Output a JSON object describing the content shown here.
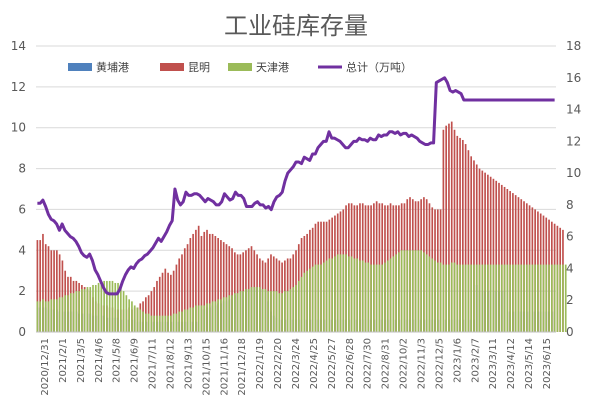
{
  "chart_data": {
    "type": "bar",
    "title": "工业硅库存量",
    "xlabel": "",
    "ylabel": "",
    "ylim_left": [
      0,
      14
    ],
    "ylim_right": [
      0,
      18
    ],
    "left_ticks": [
      "0",
      "2",
      "4",
      "6",
      "8",
      "10",
      "12",
      "14"
    ],
    "right_ticks": [
      "0",
      "2",
      "4",
      "6",
      "8",
      "10",
      "12",
      "14",
      "16",
      "18"
    ],
    "x_tick_labels": [
      "2020/12/31",
      "2021/2/1",
      "2021/3/5",
      "2021/4/6",
      "2021/5/8",
      "2021/6/9",
      "2021/7/11",
      "2021/8/12",
      "2021/9/13",
      "2021/10/15",
      "2021/11/16",
      "2021/12/18",
      "2022/1/19",
      "2022/2/20",
      "2022/3/24",
      "2022/4/25",
      "2022/5/27",
      "2022/6/28",
      "2022/7/30",
      "2022/8/31",
      "2022/10/2",
      "2022/11/3",
      "2022/12/5",
      "2023/1/6",
      "2023/2/7",
      "2023/3/11",
      "2023/4/12",
      "2023/5/14",
      "2023/6/15"
    ],
    "legend_position": "top",
    "series": [
      {
        "name": "黄埔港",
        "axis": "left",
        "type": "bar",
        "color": "#4f81bd",
        "values": [
          1.2,
          1.2,
          1.2,
          1.2,
          1.1,
          1.1,
          1.1,
          1.1,
          1.0,
          1.0,
          1.0,
          1.0,
          1.0,
          1.0,
          1.0,
          0.9,
          0.9,
          0.9,
          0.9,
          0.9,
          0.8,
          0.8,
          0.8,
          0.8,
          0.8,
          0.7,
          0.7,
          0.7,
          0.7,
          0.7,
          0.6,
          0.6,
          0.6,
          0.6,
          0.6,
          0.6,
          0.5,
          0.5,
          0.5,
          0.5,
          0.5,
          0.5,
          0.5,
          0.5,
          0.5,
          0.5,
          0.5,
          0.5,
          0.5,
          0.5,
          0.5,
          0.5,
          0.5,
          0.5,
          0.5,
          0.5,
          0.5,
          0.5,
          0.5,
          1.1,
          1.1,
          1.2,
          1.2,
          1.3,
          1.3,
          1.4,
          1.4,
          1.5,
          1.5,
          1.6,
          1.8,
          1.8,
          1.9,
          2.0,
          2.0,
          2.1,
          2.1,
          2.2,
          2.2,
          2.2,
          2.2,
          2.1,
          2.0,
          1.5,
          1.0,
          0.8,
          0.7,
          0.6,
          0.6,
          0.6,
          0.6,
          0.6,
          0.6,
          0.6,
          0.6,
          0.6,
          0.6,
          0.6,
          0.6,
          0.6,
          0.6,
          0.6,
          0.6,
          0.6,
          0.6,
          0.6,
          0.6,
          0.6,
          0.6,
          0.6,
          0.6,
          0.6,
          0.6,
          0.6,
          0.6,
          0.6,
          0.6,
          0.6,
          0.6,
          0.6,
          0.6,
          0.6,
          0.6,
          0.6,
          0.6,
          0.6,
          0.6,
          0.6,
          0.6,
          0.6,
          0.6,
          0.6,
          0.6,
          0.6,
          0.6,
          0.6,
          0.6,
          0.6,
          0.6,
          0.6,
          0.6,
          0.6,
          0.6,
          0.6,
          0.6,
          0.6,
          0.6,
          0.6,
          0.6,
          0.6,
          0.6,
          0.6,
          0.6,
          0.6,
          0.6,
          0.6,
          0.6,
          0.6,
          2.3,
          2.0,
          2.0,
          2.0,
          2.0,
          2.0,
          2.0,
          2.0,
          2.0,
          2.0,
          2.0,
          1.0,
          1.0,
          1.0,
          1.0,
          1.0,
          1.0,
          1.0,
          1.0,
          1.0,
          1.0,
          1.0,
          1.0,
          1.0,
          1.0,
          1.0,
          1.0,
          1.0,
          1.0
        ]
      },
      {
        "name": "昆明",
        "axis": "left",
        "type": "bar",
        "color": "#c0504d",
        "values": [
          4.5,
          4.5,
          4.8,
          4.3,
          4.2,
          4.0,
          4.0,
          4.0,
          3.8,
          3.5,
          3.0,
          2.7,
          2.7,
          2.5,
          2.5,
          2.4,
          2.3,
          2.2,
          2.1,
          2.0,
          1.7,
          1.5,
          1.4,
          1.3,
          1.3,
          1.3,
          1.2,
          1.2,
          1.1,
          1.1,
          1.1,
          1.1,
          1.1,
          1.2,
          1.1,
          1.2,
          1.2,
          1.4,
          1.5,
          1.7,
          1.8,
          2.0,
          2.2,
          2.5,
          2.7,
          2.9,
          3.1,
          2.9,
          2.8,
          3.0,
          3.3,
          3.6,
          3.8,
          4.1,
          4.3,
          4.6,
          4.8,
          5.0,
          5.2,
          4.7,
          4.9,
          5.0,
          4.8,
          4.8,
          4.7,
          4.6,
          4.5,
          4.4,
          4.3,
          4.2,
          4.1,
          3.9,
          3.8,
          3.8,
          3.9,
          4.0,
          4.1,
          4.2,
          4.0,
          3.8,
          3.6,
          3.5,
          3.4,
          3.6,
          3.8,
          3.7,
          3.6,
          3.5,
          3.4,
          3.5,
          3.6,
          3.6,
          3.8,
          4.0,
          4.3,
          4.6,
          4.7,
          4.8,
          5.0,
          5.1,
          5.3,
          5.4,
          5.4,
          5.4,
          5.4,
          5.5,
          5.6,
          5.7,
          5.8,
          5.9,
          6.0,
          6.2,
          6.3,
          6.3,
          6.2,
          6.2,
          6.3,
          6.3,
          6.2,
          6.2,
          6.2,
          6.3,
          6.4,
          6.3,
          6.3,
          6.2,
          6.2,
          6.3,
          6.2,
          6.2,
          6.2,
          6.3,
          6.3,
          6.5,
          6.6,
          6.5,
          6.4,
          6.4,
          6.5,
          6.6,
          6.5,
          6.3,
          6.1,
          6.0,
          6.0,
          6.0,
          9.9,
          10.1,
          10.2,
          10.3,
          9.9,
          9.6,
          9.5,
          9.4,
          9.2,
          8.9,
          8.6,
          8.4,
          8.2,
          8.0,
          7.9,
          7.8,
          7.7,
          7.6,
          7.5,
          7.4,
          7.3,
          7.2,
          7.1,
          7.0,
          6.9,
          6.8,
          6.7,
          6.6,
          6.5,
          6.4,
          6.3,
          6.2,
          6.1,
          6.0,
          5.9,
          5.8,
          5.7,
          5.6,
          5.5,
          5.4,
          5.3,
          5.2,
          5.1,
          5.0
        ]
      },
      {
        "name": "天津港",
        "axis": "left",
        "type": "bar",
        "color": "#9bbb59",
        "values": [
          1.5,
          1.5,
          1.6,
          1.5,
          1.5,
          1.6,
          1.6,
          1.6,
          1.7,
          1.7,
          1.8,
          1.8,
          1.9,
          1.9,
          2.0,
          2.0,
          2.1,
          2.1,
          2.2,
          2.2,
          2.3,
          2.3,
          2.4,
          2.4,
          2.5,
          2.5,
          2.5,
          2.5,
          2.4,
          2.4,
          2.2,
          2.0,
          1.8,
          1.6,
          1.5,
          1.3,
          1.2,
          1.1,
          1.0,
          0.9,
          0.9,
          0.8,
          0.8,
          0.8,
          0.8,
          0.8,
          0.8,
          0.8,
          0.8,
          0.9,
          0.9,
          1.0,
          1.0,
          1.1,
          1.1,
          1.2,
          1.2,
          1.3,
          1.3,
          1.3,
          1.3,
          1.4,
          1.4,
          1.5,
          1.5,
          1.6,
          1.6,
          1.7,
          1.7,
          1.8,
          1.8,
          1.9,
          1.9,
          2.0,
          2.0,
          2.1,
          2.1,
          2.2,
          2.2,
          2.2,
          2.2,
          2.1,
          2.1,
          2.0,
          2.0,
          2.0,
          2.0,
          1.9,
          1.9,
          2.0,
          2.0,
          2.1,
          2.2,
          2.3,
          2.5,
          2.7,
          2.9,
          3.0,
          3.1,
          3.2,
          3.3,
          3.3,
          3.3,
          3.4,
          3.5,
          3.6,
          3.6,
          3.7,
          3.8,
          3.8,
          3.8,
          3.8,
          3.7,
          3.7,
          3.6,
          3.6,
          3.5,
          3.5,
          3.4,
          3.4,
          3.3,
          3.3,
          3.3,
          3.3,
          3.3,
          3.4,
          3.5,
          3.6,
          3.7,
          3.8,
          3.9,
          4.0,
          4.0,
          4.0,
          4.0,
          4.0,
          4.0,
          4.0,
          4.0,
          3.9,
          3.8,
          3.7,
          3.6,
          3.5,
          3.4,
          3.4,
          3.3,
          3.3,
          3.3,
          3.4,
          3.4,
          3.3,
          3.3,
          3.3,
          3.3,
          3.3,
          3.3,
          3.3,
          3.3,
          3.3,
          3.3,
          3.3,
          3.3,
          3.3,
          3.3,
          3.3,
          3.3,
          3.3,
          3.3,
          3.3,
          3.3,
          3.3,
          3.3,
          3.3,
          3.3,
          3.3,
          3.3,
          3.3,
          3.3,
          3.3,
          3.3,
          3.3,
          3.3,
          3.3,
          3.3,
          3.3,
          3.3,
          3.3,
          3.3,
          3.3,
          3.3
        ]
      },
      {
        "name": "总计（万吨）",
        "axis": "right",
        "type": "line",
        "color": "#7030a0",
        "values": [
          8.1,
          8.1,
          8.3,
          7.9,
          7.4,
          7.1,
          7.0,
          6.8,
          6.4,
          6.8,
          6.4,
          6.2,
          6.0,
          5.9,
          5.7,
          5.4,
          5.0,
          4.8,
          4.7,
          4.9,
          4.5,
          3.9,
          3.6,
          3.2,
          2.8,
          2.5,
          2.4,
          2.4,
          2.4,
          2.4,
          2.7,
          3.2,
          3.6,
          3.9,
          4.1,
          4.0,
          4.3,
          4.5,
          4.6,
          4.8,
          4.9,
          5.1,
          5.3,
          5.6,
          5.9,
          5.7,
          6.0,
          6.3,
          6.7,
          7.0,
          9.0,
          8.3,
          8.0,
          8.2,
          8.8,
          8.6,
          8.6,
          8.7,
          8.7,
          8.6,
          8.4,
          8.2,
          8.4,
          8.3,
          8.2,
          8.0,
          8.0,
          8.2,
          8.7,
          8.5,
          8.3,
          8.4,
          8.8,
          8.6,
          8.6,
          8.4,
          7.9,
          7.9,
          7.9,
          8.1,
          8.2,
          8.0,
          8.0,
          7.8,
          7.9,
          7.7,
          8.2,
          8.5,
          8.6,
          8.8,
          9.5,
          10.0,
          10.2,
          10.4,
          10.7,
          10.7,
          10.6,
          11.0,
          10.9,
          10.8,
          11.2,
          11.2,
          11.6,
          11.8,
          12.0,
          12.0,
          12.6,
          12.2,
          12.2,
          12.1,
          12.0,
          11.8,
          11.6,
          11.6,
          11.8,
          12.0,
          12.0,
          12.2,
          12.1,
          12.1,
          12.0,
          12.2,
          12.1,
          12.1,
          12.4,
          12.3,
          12.4,
          12.4,
          12.6,
          12.6,
          12.5,
          12.6,
          12.4,
          12.5,
          12.5,
          12.3,
          12.4,
          12.3,
          12.2,
          12.0,
          11.9,
          11.8,
          11.8,
          11.9,
          11.9,
          15.7,
          15.8,
          15.9,
          16.0,
          15.7,
          15.2,
          15.1,
          15.2,
          15.1,
          15.0,
          14.6,
          14.6,
          14.6,
          14.6,
          14.6,
          14.6,
          14.6,
          14.6,
          14.6,
          14.6,
          14.6,
          14.6,
          14.6,
          14.6,
          14.6,
          14.6,
          14.6,
          14.6,
          14.6,
          14.6,
          14.6,
          14.6,
          14.6,
          14.6,
          14.6,
          14.6,
          14.6,
          14.6,
          14.6,
          14.6,
          14.6,
          14.6,
          14.6,
          14.6
        ]
      }
    ]
  }
}
